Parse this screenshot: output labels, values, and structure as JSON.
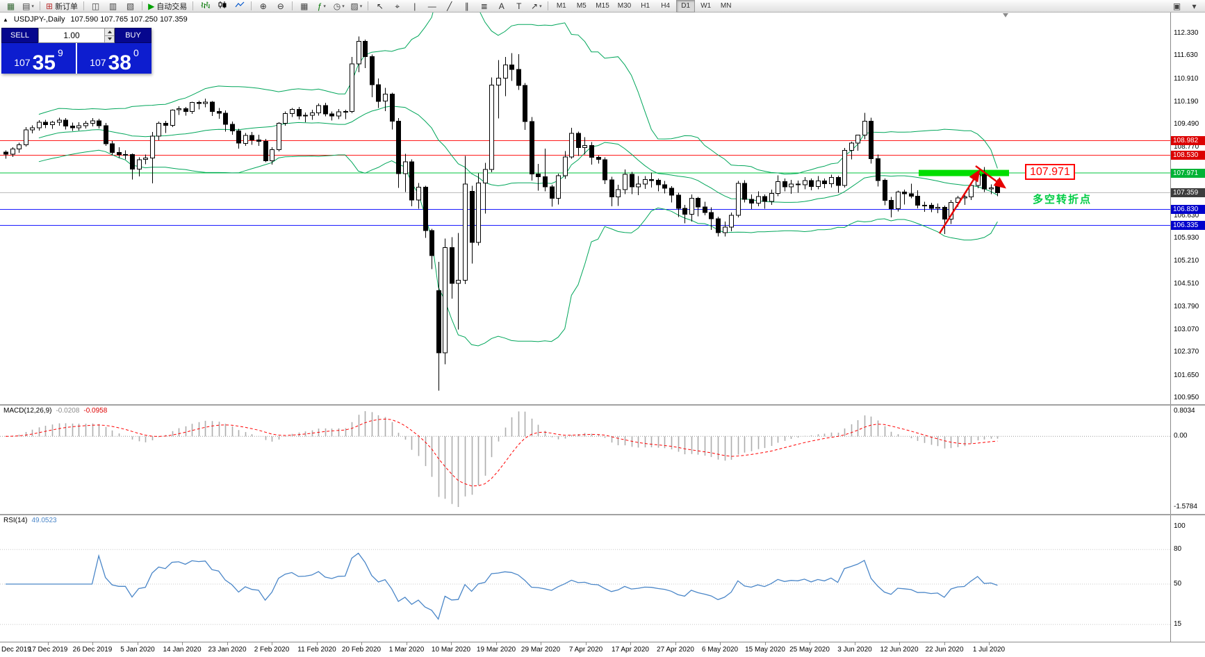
{
  "toolbar": {
    "caret_glyph": "▾",
    "groups": [
      {
        "items": [
          {
            "name": "new-chart",
            "glyph": "▦",
            "color": "#336633"
          },
          {
            "name": "chart-profiles",
            "glyph": "▤",
            "color": "#444444",
            "caret": true
          }
        ]
      },
      {
        "items": [
          {
            "name": "new-order",
            "glyph": "⊞",
            "color": "#bb3333",
            "label": "新订单"
          }
        ]
      },
      {
        "items": [
          {
            "name": "market-watch",
            "glyph": "◫",
            "color": "#444444"
          },
          {
            "name": "data-window",
            "glyph": "▥",
            "color": "#444444"
          },
          {
            "name": "navigator",
            "glyph": "▧",
            "color": "#444444"
          }
        ]
      },
      {
        "items": [
          {
            "name": "auto-trading",
            "glyph": "▶",
            "color": "#00a000",
            "label": "自动交易"
          }
        ]
      },
      {
        "items": [
          {
            "name": "bar-chart-type",
            "icon": "bars"
          },
          {
            "name": "candlestick-chart-type",
            "icon": "candles"
          },
          {
            "name": "line-chart-type",
            "icon": "line"
          }
        ]
      },
      {
        "items": [
          {
            "name": "zoom-in",
            "glyph": "⊕",
            "color": "#333333"
          },
          {
            "name": "zoom-out",
            "glyph": "⊖",
            "color": "#333333"
          }
        ]
      },
      {
        "items": [
          {
            "name": "tile-windows",
            "glyph": "▦",
            "color": "#444444"
          },
          {
            "name": "indicators-list",
            "glyph": "ƒ",
            "color": "#007700",
            "caret": true
          },
          {
            "name": "periods",
            "glyph": "◷",
            "color": "#444444",
            "caret": true
          },
          {
            "name": "templates",
            "glyph": "▨",
            "color": "#444444",
            "caret": true
          }
        ]
      },
      {
        "items": [
          {
            "name": "cursor-tool",
            "glyph": "↖",
            "color": "#333333"
          },
          {
            "name": "crosshair-tool",
            "glyph": "⌖",
            "color": "#333333"
          },
          {
            "name": "vertical-line-tool",
            "glyph": "|",
            "color": "#333333"
          },
          {
            "name": "horizontal-line-tool",
            "glyph": "―",
            "color": "#333333"
          },
          {
            "name": "trendline-tool",
            "glyph": "╱",
            "color": "#333333"
          },
          {
            "name": "channel-tool",
            "glyph": "∥",
            "color": "#333333"
          },
          {
            "name": "fibonacci-tool",
            "glyph": "≣",
            "color": "#333333"
          },
          {
            "name": "text-tool",
            "glyph": "A",
            "color": "#333333"
          },
          {
            "name": "label-tool",
            "glyph": "T",
            "color": "#333333"
          },
          {
            "name": "arrows-tool",
            "glyph": "↗",
            "color": "#333333",
            "caret": true
          }
        ]
      },
      {
        "timeframes": true
      }
    ],
    "right_items": [
      {
        "name": "toolbars-menu",
        "glyph": "▣",
        "color": "#444444"
      },
      {
        "name": "overflow-menu",
        "glyph": "▾",
        "color": "#444444"
      }
    ]
  },
  "timeframes": {
    "items": [
      "M1",
      "M5",
      "M15",
      "M30",
      "H1",
      "H4",
      "D1",
      "W1",
      "MN"
    ],
    "active": "D1"
  },
  "chart": {
    "marker": "▲",
    "title_symbol": "USDJPY-,Daily",
    "title_ohlc": "107.590 107.765 107.250 107.359",
    "scale_labels": [
      "112.330",
      "111.630",
      "110.910",
      "110.190",
      "109.490",
      "108.770",
      "106.630",
      "105.930",
      "105.210",
      "104.510",
      "103.790",
      "103.070",
      "102.370",
      "101.650",
      "100.950"
    ],
    "badges": [
      {
        "text": "108.982",
        "bg": "#dc0000"
      },
      {
        "text": "108.530",
        "bg": "#dc0000"
      },
      {
        "text": "107.971",
        "bg": "#00b336"
      },
      {
        "text": "107.359",
        "bg": "#3d3d3d"
      },
      {
        "text": "106.830",
        "bg": "#0000cc"
      },
      {
        "text": "106.335",
        "bg": "#0000cc"
      }
    ],
    "hlines": [
      {
        "v": 108.982,
        "color": "#ff1a1a"
      },
      {
        "v": 108.53,
        "color": "#ff1a1a"
      },
      {
        "v": 107.971,
        "color": "#00c43c"
      },
      {
        "v": 107.359,
        "color": "#bbbbbb"
      },
      {
        "v": 106.83,
        "color": "#1a1aff"
      },
      {
        "v": 106.335,
        "color": "#1a1aff"
      }
    ],
    "bollinger": {
      "period": 20,
      "deviation": 2,
      "color": "#00a65a"
    },
    "zone_value": 107.971,
    "zone_color": "#00de00",
    "up_color": "#ffffff",
    "down_color": "#000000",
    "outline_color": "#000000"
  },
  "macd": {
    "title": "MACD(12,26,9)",
    "value_main": "-0.0208",
    "value_signal": "-0.0958",
    "fast": 12,
    "slow": 26,
    "signal": 9,
    "scale_top": "0.8034",
    "scale_zero": "0.00",
    "scale_bottom": "-1.5784",
    "hist_color": "#adadad",
    "signal_color": "#ff0000"
  },
  "rsi": {
    "title": "RSI(14)",
    "value": "49.0523",
    "period": 14,
    "color": "#4a86c8",
    "scale_labels": [
      {
        "text": "100",
        "v": 100
      },
      {
        "text": "80",
        "v": 80
      },
      {
        "text": "50",
        "v": 50
      },
      {
        "text": "15",
        "v": 15
      }
    ]
  },
  "trade_panel": {
    "sell_label": "SELL",
    "buy_label": "BUY",
    "lot": "1.00",
    "sell_price": {
      "prefix": "107",
      "big": "35",
      "sup": "9"
    },
    "buy_price": {
      "prefix": "107",
      "big": "38",
      "sup": "0"
    }
  },
  "annotations": {
    "price_label": "107.971",
    "turning_note": "多空转折点",
    "arrow_color": "#e60000"
  },
  "chart_data": {
    "type": "candlestick",
    "symbol": "USDJPY-",
    "timeframe": "Daily",
    "ohlc_display": {
      "open": "107.590",
      "high": "107.765",
      "low": "107.250",
      "close": "107.359"
    },
    "y_range": [
      100.95,
      112.68
    ],
    "horizontal_levels": [
      108.982,
      108.53,
      107.971,
      107.359,
      106.83,
      106.335
    ],
    "x_labels": [
      "Dec 2019",
      "17 Dec 2019",
      "26 Dec 2019",
      "5 Jan 2020",
      "14 Jan 2020",
      "23 Jan 2020",
      "2 Feb 2020",
      "11 Feb 2020",
      "20 Feb 2020",
      "1 Mar 2020",
      "10 Mar 2020",
      "19 Mar 2020",
      "29 Mar 2020",
      "7 Apr 2020",
      "17 Apr 2020",
      "27 Apr 2020",
      "6 May 2020",
      "15 May 2020",
      "25 May 2020",
      "3 Jun 2020",
      "12 Jun 2020",
      "22 Jun 2020",
      "1 Jul 2020"
    ],
    "indicators": [
      {
        "name": "Bollinger Bands",
        "period": 20,
        "deviation": 2
      },
      {
        "name": "MACD",
        "fast": 12,
        "slow": 26,
        "signal": 9,
        "values": "-0.0208 -0.0958"
      },
      {
        "name": "RSI",
        "period": 14,
        "value": "49.0523"
      }
    ],
    "candles": [
      [
        108.62,
        108.68,
        108.42,
        108.56
      ],
      [
        108.56,
        108.78,
        108.47,
        108.72
      ],
      [
        108.72,
        108.92,
        108.6,
        108.85
      ],
      [
        108.85,
        109.4,
        108.8,
        109.32
      ],
      [
        109.32,
        109.46,
        109.21,
        109.38
      ],
      [
        109.38,
        109.62,
        109.3,
        109.55
      ],
      [
        109.55,
        109.63,
        109.37,
        109.48
      ],
      [
        109.48,
        109.6,
        109.35,
        109.55
      ],
      [
        109.55,
        109.7,
        109.45,
        109.62
      ],
      [
        109.62,
        109.68,
        109.33,
        109.44
      ],
      [
        109.44,
        109.54,
        109.28,
        109.38
      ],
      [
        109.38,
        109.55,
        109.3,
        109.45
      ],
      [
        109.45,
        109.6,
        109.36,
        109.52
      ],
      [
        109.52,
        109.68,
        109.42,
        109.6
      ],
      [
        109.6,
        109.66,
        109.36,
        109.45
      ],
      [
        109.45,
        109.53,
        108.82,
        108.88
      ],
      [
        108.88,
        108.97,
        108.53,
        108.61
      ],
      [
        108.61,
        108.77,
        108.44,
        108.55
      ],
      [
        108.55,
        108.68,
        108.4,
        108.55
      ],
      [
        108.55,
        108.58,
        107.77,
        108.09
      ],
      [
        108.09,
        108.46,
        107.86,
        108.39
      ],
      [
        108.39,
        108.55,
        108.24,
        108.44
      ],
      [
        108.44,
        109.25,
        107.65,
        109.12
      ],
      [
        109.12,
        109.58,
        108.99,
        109.52
      ],
      [
        109.52,
        109.6,
        109.22,
        109.46
      ],
      [
        109.46,
        109.96,
        109.4,
        109.94
      ],
      [
        109.94,
        110.05,
        109.78,
        109.98
      ],
      [
        109.98,
        110.03,
        109.76,
        109.89
      ],
      [
        109.89,
        110.2,
        109.82,
        110.17
      ],
      [
        110.17,
        110.23,
        109.96,
        110.14
      ],
      [
        110.14,
        110.29,
        110.02,
        110.18
      ],
      [
        110.18,
        110.22,
        109.75,
        109.89
      ],
      [
        109.89,
        110.0,
        109.66,
        109.84
      ],
      [
        109.84,
        109.92,
        109.26,
        109.49
      ],
      [
        109.49,
        109.58,
        109.17,
        109.28
      ],
      [
        109.28,
        109.35,
        108.73,
        108.9
      ],
      [
        108.9,
        109.22,
        108.82,
        109.14
      ],
      [
        109.14,
        109.25,
        108.85,
        109.0
      ],
      [
        109.0,
        109.16,
        108.82,
        108.96
      ],
      [
        108.96,
        109.03,
        108.31,
        108.35
      ],
      [
        108.35,
        108.78,
        108.23,
        108.7
      ],
      [
        108.7,
        109.56,
        108.65,
        109.52
      ],
      [
        109.52,
        109.89,
        109.45,
        109.83
      ],
      [
        109.83,
        110.0,
        109.72,
        109.96
      ],
      [
        109.96,
        110.03,
        109.64,
        109.75
      ],
      [
        109.75,
        109.86,
        109.55,
        109.77
      ],
      [
        109.77,
        109.95,
        109.63,
        109.85
      ],
      [
        109.85,
        110.14,
        109.76,
        110.08
      ],
      [
        110.08,
        110.16,
        109.74,
        109.82
      ],
      [
        109.82,
        109.89,
        109.61,
        109.75
      ],
      [
        109.75,
        109.97,
        109.65,
        109.88
      ],
      [
        109.88,
        109.95,
        109.65,
        109.89
      ],
      [
        109.89,
        111.59,
        109.84,
        111.38
      ],
      [
        111.38,
        112.23,
        111.12,
        112.08
      ],
      [
        112.08,
        112.13,
        111.25,
        111.6
      ],
      [
        111.6,
        111.67,
        110.34,
        110.73
      ],
      [
        110.73,
        110.92,
        110.0,
        110.21
      ],
      [
        110.21,
        110.63,
        109.9,
        110.43
      ],
      [
        110.43,
        110.48,
        109.33,
        109.59
      ],
      [
        109.59,
        109.68,
        107.51,
        107.95
      ],
      [
        107.95,
        108.57,
        107.38,
        108.32
      ],
      [
        108.32,
        108.4,
        106.93,
        107.13
      ],
      [
        107.13,
        107.66,
        106.86,
        107.53
      ],
      [
        107.53,
        107.57,
        105.95,
        106.17
      ],
      [
        106.17,
        106.23,
        104.97,
        105.39
      ],
      [
        104.3,
        105.2,
        101.18,
        102.36
      ],
      [
        102.36,
        105.92,
        102.0,
        105.64
      ],
      [
        105.64,
        105.97,
        104.05,
        104.53
      ],
      [
        104.53,
        106.1,
        103.08,
        104.62
      ],
      [
        104.62,
        108.5,
        104.5,
        107.63
      ],
      [
        107.4,
        107.57,
        105.14,
        105.8
      ],
      [
        105.8,
        107.96,
        105.71,
        107.66
      ],
      [
        107.66,
        108.29,
        106.7,
        108.08
      ],
      [
        108.08,
        110.95,
        107.99,
        110.72
      ],
      [
        110.72,
        111.5,
        109.67,
        110.93
      ],
      [
        110.93,
        111.59,
        110.37,
        111.34
      ],
      [
        111.34,
        111.71,
        110.85,
        111.2
      ],
      [
        111.2,
        111.68,
        110.56,
        110.7
      ],
      [
        110.7,
        110.78,
        109.32,
        109.58
      ],
      [
        109.58,
        109.72,
        107.73,
        107.94
      ],
      [
        107.94,
        108.25,
        107.42,
        107.85
      ],
      [
        107.85,
        108.73,
        107.4,
        107.54
      ],
      [
        107.54,
        107.6,
        106.92,
        107.18
      ],
      [
        107.18,
        107.95,
        106.99,
        107.89
      ],
      [
        107.89,
        108.66,
        107.79,
        108.47
      ],
      [
        108.47,
        109.38,
        108.42,
        109.21
      ],
      [
        109.21,
        109.26,
        108.5,
        108.76
      ],
      [
        108.76,
        109.09,
        108.55,
        108.83
      ],
      [
        108.83,
        108.94,
        108.23,
        108.46
      ],
      [
        108.46,
        108.52,
        108.26,
        108.39
      ],
      [
        108.39,
        108.46,
        107.63,
        107.76
      ],
      [
        107.76,
        107.85,
        106.93,
        107.22
      ],
      [
        107.22,
        107.6,
        106.94,
        107.45
      ],
      [
        107.45,
        108.08,
        107.31,
        107.93
      ],
      [
        107.93,
        108.01,
        107.31,
        107.54
      ],
      [
        107.54,
        107.88,
        107.28,
        107.63
      ],
      [
        107.63,
        107.87,
        107.47,
        107.77
      ],
      [
        107.77,
        107.98,
        107.52,
        107.74
      ],
      [
        107.74,
        107.8,
        107.4,
        107.6
      ],
      [
        107.6,
        107.72,
        107.33,
        107.5
      ],
      [
        107.5,
        107.56,
        107.05,
        107.28
      ],
      [
        107.28,
        107.35,
        106.6,
        106.87
      ],
      [
        106.87,
        106.98,
        106.4,
        106.68
      ],
      [
        106.68,
        107.3,
        106.46,
        107.18
      ],
      [
        107.18,
        107.23,
        106.62,
        106.91
      ],
      [
        106.91,
        107.07,
        106.65,
        106.74
      ],
      [
        106.74,
        106.9,
        106.2,
        106.54
      ],
      [
        106.54,
        106.61,
        105.99,
        106.11
      ],
      [
        106.11,
        106.45,
        105.99,
        106.28
      ],
      [
        106.28,
        106.74,
        106.15,
        106.65
      ],
      [
        106.65,
        107.72,
        106.58,
        107.65
      ],
      [
        107.65,
        107.75,
        107.05,
        107.15
      ],
      [
        107.15,
        107.3,
        106.85,
        107.03
      ],
      [
        107.03,
        107.4,
        106.93,
        107.24
      ],
      [
        107.24,
        107.3,
        106.86,
        107.08
      ],
      [
        107.08,
        107.45,
        106.98,
        107.33
      ],
      [
        107.33,
        107.9,
        107.25,
        107.7
      ],
      [
        107.7,
        107.8,
        107.4,
        107.54
      ],
      [
        107.54,
        107.76,
        107.32,
        107.63
      ],
      [
        107.63,
        107.73,
        107.35,
        107.6
      ],
      [
        107.6,
        107.84,
        107.46,
        107.73
      ],
      [
        107.73,
        107.8,
        107.43,
        107.55
      ],
      [
        107.55,
        107.88,
        107.46,
        107.72
      ],
      [
        107.72,
        107.8,
        107.5,
        107.64
      ],
      [
        107.64,
        107.92,
        107.52,
        107.83
      ],
      [
        107.83,
        107.89,
        107.35,
        107.58
      ],
      [
        107.58,
        108.75,
        107.52,
        108.68
      ],
      [
        108.68,
        108.95,
        108.4,
        108.9
      ],
      [
        108.9,
        109.17,
        108.67,
        109.15
      ],
      [
        109.15,
        109.85,
        109.02,
        109.59
      ],
      [
        109.59,
        109.7,
        108.26,
        108.42
      ],
      [
        108.42,
        108.55,
        107.55,
        107.74
      ],
      [
        107.74,
        107.8,
        106.96,
        107.12
      ],
      [
        107.12,
        107.23,
        106.58,
        106.86
      ],
      [
        106.86,
        107.42,
        106.77,
        107.38
      ],
      [
        107.38,
        107.45,
        106.99,
        107.32
      ],
      [
        107.32,
        107.64,
        107.18,
        107.25
      ],
      [
        107.25,
        107.43,
        106.87,
        106.96
      ],
      [
        106.96,
        107.07,
        106.76,
        106.97
      ],
      [
        106.97,
        107.04,
        106.75,
        106.87
      ],
      [
        106.87,
        107.02,
        106.72,
        106.9
      ],
      [
        106.9,
        106.95,
        106.07,
        106.53
      ],
      [
        106.53,
        107.13,
        106.38,
        107.05
      ],
      [
        107.05,
        107.26,
        106.92,
        107.19
      ],
      [
        107.19,
        107.28,
        106.98,
        107.22
      ],
      [
        107.22,
        107.64,
        107.13,
        107.58
      ],
      [
        107.58,
        108.02,
        107.5,
        107.93
      ],
      [
        107.93,
        108.16,
        107.38,
        107.47
      ],
      [
        107.47,
        107.62,
        107.31,
        107.51
      ],
      [
        107.59,
        107.765,
        107.25,
        107.359
      ]
    ]
  }
}
